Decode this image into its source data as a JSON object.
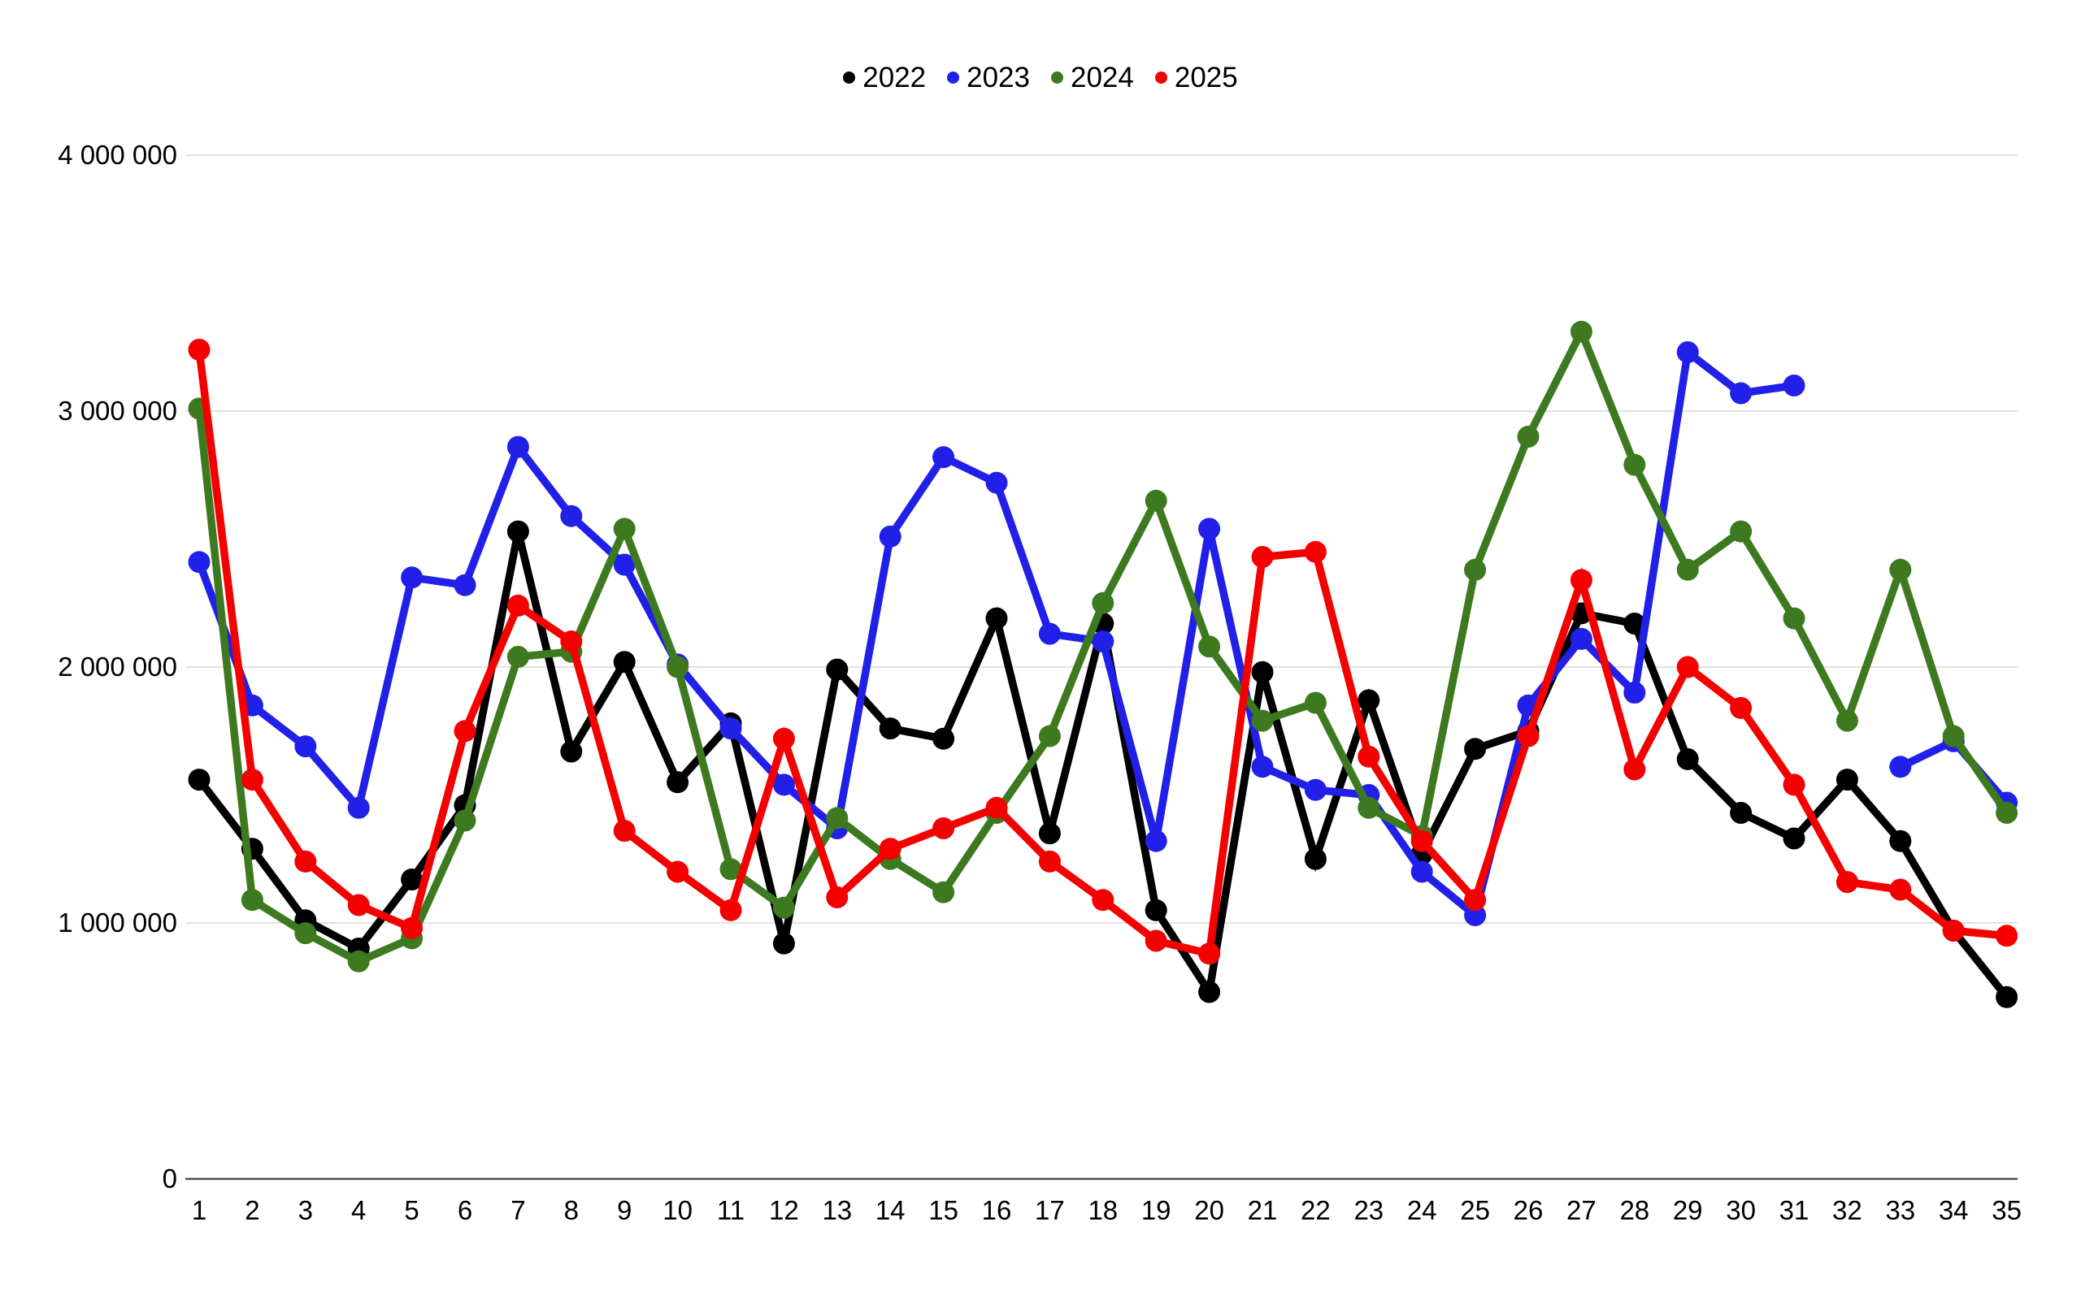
{
  "chart_data": {
    "type": "line",
    "title": "",
    "xlabel": "",
    "ylabel": "",
    "x": [
      1,
      2,
      3,
      4,
      5,
      6,
      7,
      8,
      9,
      10,
      11,
      12,
      13,
      14,
      15,
      16,
      17,
      18,
      19,
      20,
      21,
      22,
      23,
      24,
      25,
      26,
      27,
      28,
      29,
      30,
      31,
      32,
      33,
      34,
      35
    ],
    "series": [
      {
        "name": "2022",
        "color": "#000000",
        "values": [
          1560000,
          1290000,
          1010000,
          900000,
          1170000,
          1460000,
          2530000,
          1670000,
          2020000,
          1550000,
          1780000,
          920000,
          1990000,
          1760000,
          1720000,
          2190000,
          1350000,
          2170000,
          1050000,
          730000,
          1980000,
          1250000,
          1870000,
          1270000,
          1680000,
          1750000,
          2210000,
          2170000,
          1640000,
          1430000,
          1330000,
          1560000,
          1320000,
          970000,
          710000
        ]
      },
      {
        "name": "2023",
        "color": "#2020e8",
        "values": [
          2410000,
          1850000,
          1690000,
          1450000,
          2350000,
          2320000,
          2860000,
          2590000,
          2400000,
          2010000,
          1760000,
          1540000,
          1370000,
          2510000,
          2820000,
          2720000,
          2130000,
          2100000,
          1320000,
          2540000,
          1610000,
          1520000,
          1500000,
          1200000,
          1030000,
          1850000,
          2110000,
          1900000,
          3230000,
          3070000,
          3100000,
          null,
          1610000,
          1710000,
          1470000
        ]
      },
      {
        "name": "2024",
        "color": "#3d7a1f",
        "values": [
          3010000,
          1090000,
          960000,
          850000,
          940000,
          1400000,
          2040000,
          2060000,
          2540000,
          2000000,
          1210000,
          1060000,
          1410000,
          1250000,
          1120000,
          1430000,
          1730000,
          2250000,
          2650000,
          2080000,
          1790000,
          1860000,
          1450000,
          1340000,
          2380000,
          2900000,
          3310000,
          2790000,
          2380000,
          2530000,
          2190000,
          1790000,
          2380000,
          1730000,
          1430000
        ]
      },
      {
        "name": "2025",
        "color": "#f40000",
        "values": [
          3240000,
          1560000,
          1240000,
          1070000,
          980000,
          1750000,
          2240000,
          2100000,
          1360000,
          1200000,
          1050000,
          1720000,
          1100000,
          1290000,
          1370000,
          1450000,
          1240000,
          1090000,
          930000,
          880000,
          2430000,
          2450000,
          1650000,
          1320000,
          1090000,
          1730000,
          2340000,
          1600000,
          2000000,
          1840000,
          1540000,
          1160000,
          1130000,
          970000,
          950000
        ]
      }
    ],
    "ylim": [
      0,
      4000000
    ],
    "y_ticks": [
      {
        "value": 0,
        "label": "0"
      },
      {
        "value": 1000000,
        "label": "1 000 000"
      },
      {
        "value": 2000000,
        "label": "2 000 000"
      },
      {
        "value": 3000000,
        "label": "3 000 000"
      },
      {
        "value": 4000000,
        "label": "4 000 000"
      }
    ],
    "grid": true,
    "legend_position": "top-center",
    "colors": {
      "background": "#ffffff",
      "gridline": "#e2e2e2",
      "axis_line": "#4d4d4d",
      "tick_text": "#000000"
    }
  }
}
